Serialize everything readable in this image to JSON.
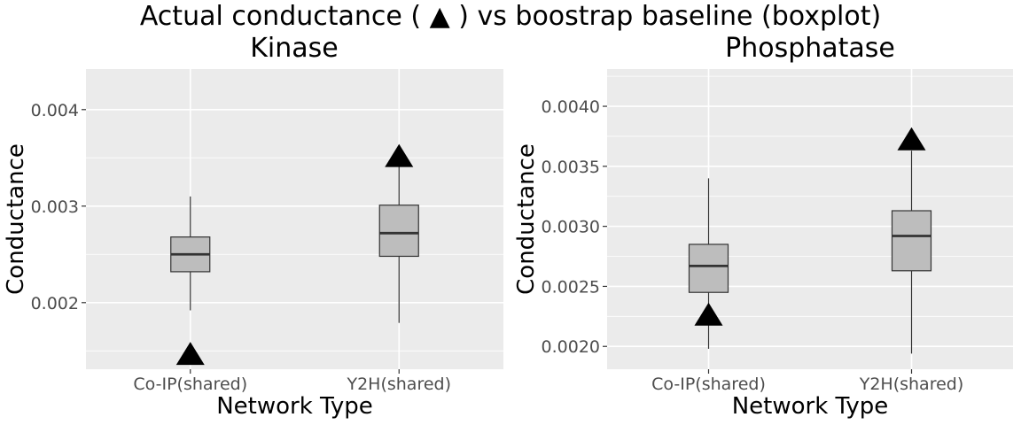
{
  "chart_data": {
    "type": "boxplot",
    "title": "Actual conductance ( ▲ ) vs boostrap baseline (boxplot)",
    "legend": "none",
    "grid": true,
    "panels": [
      {
        "title": "Kinase",
        "xlabel": "Network Type",
        "ylabel": "Conductance",
        "categories": [
          "Co-IP(shared)",
          "Y2H(shared)"
        ],
        "ylim": [
          0.00131,
          0.00442
        ],
        "yticks": [
          0.002,
          0.003,
          0.004
        ],
        "ytick_labels": [
          "0.002",
          "0.003",
          "0.004"
        ],
        "boxes": [
          {
            "whisker_low": 0.00192,
            "q1": 0.00232,
            "median": 0.0025,
            "q3": 0.00268,
            "whisker_high": 0.0031
          },
          {
            "whisker_low": 0.00179,
            "q1": 0.00248,
            "median": 0.00272,
            "q3": 0.00301,
            "whisker_high": 0.00343
          }
        ],
        "actual": [
          0.00145,
          0.0035
        ]
      },
      {
        "title": "Phosphatase",
        "xlabel": "Network Type",
        "ylabel": "Conductance",
        "categories": [
          "Co-IP(shared)",
          "Y2H(shared)"
        ],
        "ylim": [
          0.00181,
          0.00431
        ],
        "yticks": [
          0.002,
          0.0025,
          0.003,
          0.0035,
          0.004
        ],
        "ytick_labels": [
          "0.0020",
          "0.0025",
          "0.0030",
          "0.0035",
          "0.0040"
        ],
        "boxes": [
          {
            "whisker_low": 0.00198,
            "q1": 0.00245,
            "median": 0.00267,
            "q3": 0.00285,
            "whisker_high": 0.0034
          },
          {
            "whisker_low": 0.00194,
            "q1": 0.00263,
            "median": 0.00292,
            "q3": 0.00313,
            "whisker_high": 0.00363
          }
        ],
        "actual": [
          0.00225,
          0.00371
        ]
      }
    ]
  },
  "colors": {
    "panel_bg": "#ebebeb",
    "grid": "#ffffff",
    "box_fill": "#bdbdbd",
    "box_line": "#333333",
    "marker": "#000000",
    "tick_text": "#4d4d4d"
  }
}
